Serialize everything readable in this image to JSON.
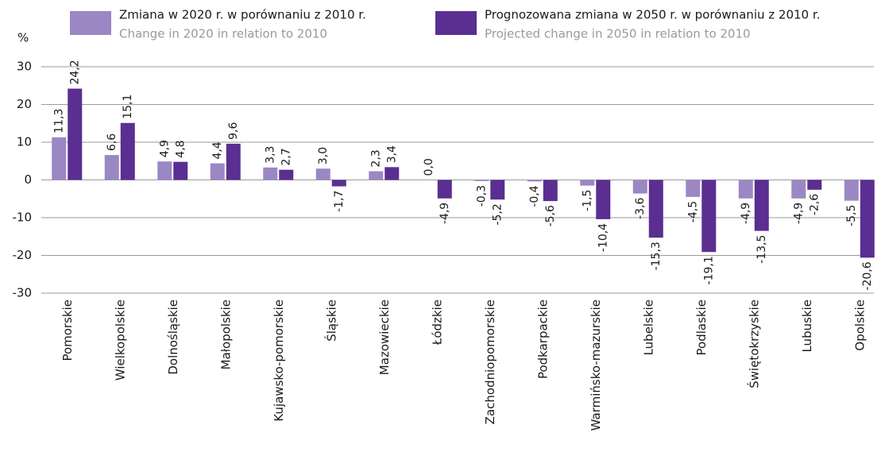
{
  "chart_data": {
    "type": "bar",
    "ylabel": "%",
    "categories": [
      "Pomorskie",
      "Wielkopolskie",
      "Dolnośląskie",
      "Małopolskie",
      "Kujawsko-pomorskie",
      "Śląskie",
      "Mazowieckie",
      "Łódzkie",
      "Zachodniopomorskie",
      "Podkarpackie",
      "Warmińsko-mazurskie",
      "Lubelskie",
      "Podlaskie",
      "Świętokrzyskie",
      "Lubuskie",
      "Opolskie"
    ],
    "series": [
      {
        "name": "Zmiana w 2020 r. w porównaniu z 2010 r.",
        "name_en": "Change in 2020 in relation to 2010",
        "color": "#9b87c4",
        "values": [
          11.3,
          6.6,
          4.9,
          4.4,
          3.3,
          3.0,
          2.3,
          0.0,
          -0.3,
          -0.4,
          -1.5,
          -3.6,
          -4.5,
          -4.9,
          -4.9,
          -5.5
        ],
        "value_labels": [
          "11,3",
          "6,6",
          "4,9",
          "4,4",
          "3,3",
          "3,0",
          "2,3",
          "0,0",
          "-0,3",
          "-0,4",
          "-1,5",
          "-3,6",
          "-4,5",
          "-4,9",
          "-4,9",
          "-5,5"
        ]
      },
      {
        "name": "Prognozowana zmiana w 2050 r. w porównaniu z 2010 r.",
        "name_en": "Projected change in 2050 in relation to 2010",
        "color": "#5b2e91",
        "values": [
          24.2,
          15.1,
          4.8,
          9.6,
          2.7,
          -1.7,
          3.4,
          -4.9,
          -5.2,
          -5.6,
          -10.4,
          -15.3,
          -19.1,
          -13.5,
          -2.6,
          -20.6
        ],
        "value_labels": [
          "24,2",
          "15,1",
          "4,8",
          "9,6",
          "2,7",
          "-1,7",
          "3,4",
          "-4,9",
          "-5,2",
          "-5,6",
          "-10,4",
          "-15,3",
          "-19,1",
          "-13,5",
          "-2,6",
          "-20,6"
        ]
      }
    ],
    "ylim": [
      -30,
      30
    ],
    "yticks": [
      30,
      20,
      10,
      0,
      -10,
      -20,
      -30
    ],
    "grid": true
  }
}
